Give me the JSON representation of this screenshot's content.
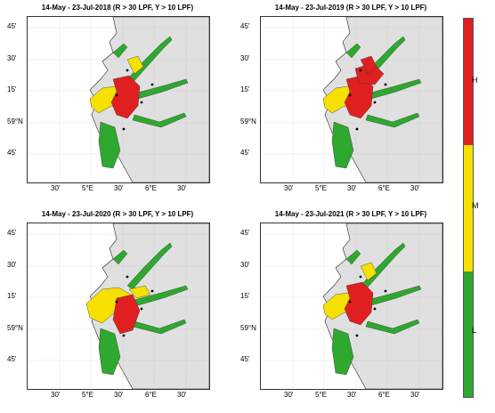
{
  "colors": {
    "H": "#e02020",
    "M": "#f5e000",
    "L": "#2ea82e",
    "land": "#e0e0e0",
    "coast": "#222222",
    "grid": "#bbbbbb"
  },
  "colorbar": {
    "levels": [
      {
        "label": "H",
        "color_key": "H"
      },
      {
        "label": "M",
        "color_key": "M"
      },
      {
        "label": "L",
        "color_key": "L"
      }
    ]
  },
  "axes": {
    "lat_labels": [
      "45'",
      "30'",
      "15'",
      "59°N",
      "45'"
    ],
    "lon_labels": [
      "30'",
      "5°E",
      "30'",
      "6°E",
      "30'"
    ]
  },
  "panels": [
    {
      "title": "14-May - 23-Jul-2018 (R > 30 LPF, Y > 10 LPF)",
      "risk_mix": "high"
    },
    {
      "title": "14-May - 23-Jul-2019 (R > 30 LPF, Y > 10 LPF)",
      "risk_mix": "very_high"
    },
    {
      "title": "14-May - 23-Jul-2020 (R > 30 LPF, Y > 10 LPF)",
      "risk_mix": "mixed"
    },
    {
      "title": "14-May - 23-Jul-2021 (R > 30 LPF, Y > 10 LPF)",
      "risk_mix": "high"
    }
  ]
}
